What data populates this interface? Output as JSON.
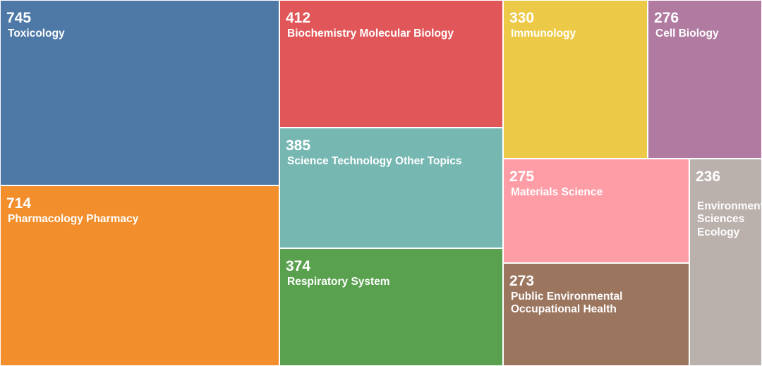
{
  "chart_data": {
    "type": "treemap",
    "title": "",
    "items": [
      {
        "name": "Toxicology",
        "value": 745,
        "value_label": "745",
        "label_lines": [
          "Toxicology"
        ],
        "color": "#4e79a7"
      },
      {
        "name": "Pharmacology Pharmacy",
        "value": 714,
        "value_label": "714",
        "label_lines": [
          "Pharmacology Pharmacy"
        ],
        "color": "#f28e2b"
      },
      {
        "name": "Biochemistry Molecular Biology",
        "value": 412,
        "value_label": "412",
        "label_lines": [
          "Biochemistry Molecular Biology"
        ],
        "color": "#e15759"
      },
      {
        "name": "Science Technology Other Topics",
        "value": 385,
        "value_label": "385",
        "label_lines": [
          "Science Technology Other Topics"
        ],
        "color": "#76b7b2"
      },
      {
        "name": "Respiratory System",
        "value": 374,
        "value_label": "374",
        "label_lines": [
          "Respiratory System"
        ],
        "color": "#59a14f"
      },
      {
        "name": "Immunology",
        "value": 330,
        "value_label": "330",
        "label_lines": [
          "Immunology"
        ],
        "color": "#edc948"
      },
      {
        "name": "Cell Biology",
        "value": 276,
        "value_label": "276",
        "label_lines": [
          "Cell Biology"
        ],
        "color": "#b07aa1"
      },
      {
        "name": "Materials Science",
        "value": 275,
        "value_label": "275",
        "label_lines": [
          "Materials Science"
        ],
        "color": "#ff9da7"
      },
      {
        "name": "Public Environmental Occupational Health",
        "value": 273,
        "value_label": "273",
        "label_lines": [
          "Public Environmental",
          "Occupational Health"
        ],
        "color": "#9c755f"
      },
      {
        "name": "Environmental Sciences Ecology",
        "value": 236,
        "value_label": "236",
        "label_lines": [
          "Environmental",
          "Sciences",
          "Ecology"
        ],
        "color": "#bab0ac"
      }
    ]
  }
}
